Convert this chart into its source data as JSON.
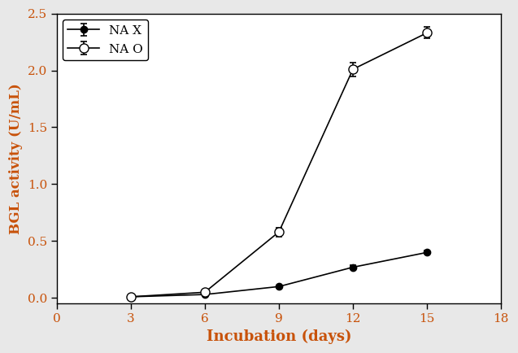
{
  "title": "",
  "xlabel": "Incubation (days)",
  "ylabel": "BGL activity (U/mL)",
  "xlim": [
    0,
    18
  ],
  "ylim": [
    -0.05,
    2.5
  ],
  "xticks": [
    0,
    3,
    6,
    9,
    12,
    15,
    18
  ],
  "yticks": [
    0.0,
    0.5,
    1.0,
    1.5,
    2.0,
    2.5
  ],
  "series": [
    {
      "label": "NA X",
      "x": [
        3,
        6,
        9,
        12,
        15
      ],
      "y": [
        0.01,
        0.03,
        0.1,
        0.27,
        0.4
      ],
      "yerr": [
        0.005,
        0.005,
        0.01,
        0.015,
        0.015
      ],
      "marker": "o",
      "markerfacecolor": "black",
      "markeredgecolor": "black",
      "linecolor": "black",
      "markersize": 6,
      "linewidth": 1.2
    },
    {
      "label": "NA O",
      "x": [
        3,
        6,
        9,
        12,
        15
      ],
      "y": [
        0.01,
        0.05,
        0.58,
        2.01,
        2.33
      ],
      "yerr": [
        0.005,
        0.01,
        0.04,
        0.06,
        0.05
      ],
      "marker": "o",
      "markerfacecolor": "white",
      "markeredgecolor": "black",
      "linecolor": "black",
      "markersize": 8,
      "linewidth": 1.2
    }
  ],
  "legend_loc": "upper left",
  "figsize": [
    6.37,
    4.34
  ],
  "dpi": 100,
  "label_color": "#c8520a",
  "tick_color": "#c8520a",
  "figure_facecolor": "#e8e8e8",
  "axes_facecolor": "#ffffff",
  "xlabel_fontsize": 13,
  "ylabel_fontsize": 12,
  "tick_fontsize": 11
}
